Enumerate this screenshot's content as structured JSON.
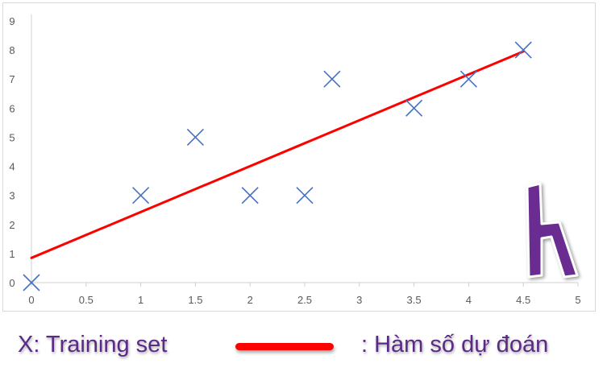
{
  "chart_data": {
    "type": "scatter",
    "xlim": [
      0,
      5
    ],
    "ylim": [
      0,
      9
    ],
    "x_ticks": [
      "0",
      "0.5",
      "1",
      "1.5",
      "2",
      "2.5",
      "3",
      "3.5",
      "4",
      "4.5",
      "5"
    ],
    "y_ticks": [
      "0",
      "1",
      "2",
      "3",
      "4",
      "5",
      "6",
      "7",
      "8",
      "9"
    ],
    "grid": false,
    "series": [
      {
        "name": "X: Training set",
        "type": "scatter",
        "marker": "x",
        "color": "#4472c4",
        "points": [
          {
            "x": 0,
            "y": 0
          },
          {
            "x": 1,
            "y": 3
          },
          {
            "x": 1.5,
            "y": 5
          },
          {
            "x": 2,
            "y": 3
          },
          {
            "x": 2.5,
            "y": 3
          },
          {
            "x": 2.75,
            "y": 7
          },
          {
            "x": 3.5,
            "y": 6
          },
          {
            "x": 4,
            "y": 7
          },
          {
            "x": 4.5,
            "y": 8
          }
        ]
      },
      {
        "name": ": Hàm số dự đoán",
        "type": "line",
        "color": "#ff0000",
        "points": [
          {
            "x": 0,
            "y": 0.85
          },
          {
            "x": 4.5,
            "y": 7.95
          }
        ]
      }
    ]
  },
  "legend": {
    "scatter_label": "X: Training set",
    "line_label": ": Hàm số dự đoán",
    "line_color": "#ff0000",
    "text_color": "#5b2a86"
  },
  "logo": {
    "icon": "h-logo-icon",
    "color": "#6a2c91",
    "letter": "h"
  }
}
